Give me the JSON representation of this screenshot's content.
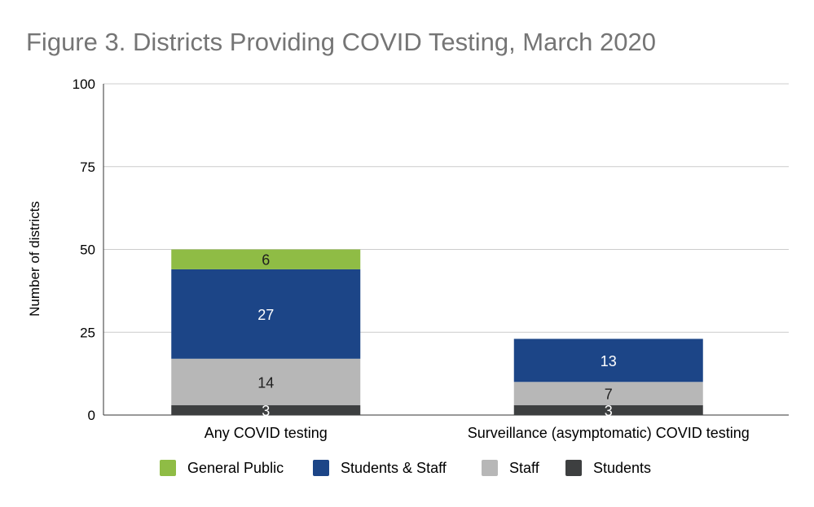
{
  "chart_data": {
    "type": "bar",
    "stacked": true,
    "title": "Figure 3. Districts Providing COVID Testing, March 2020",
    "xlabel": "",
    "ylabel": "Number of districts",
    "ylim": [
      0,
      100
    ],
    "yticks": [
      0,
      25,
      50,
      75,
      100
    ],
    "grid": true,
    "legend_position": "bottom",
    "categories": [
      "Any COVID testing",
      "Surveillance (asymptomatic) COVID testing"
    ],
    "series": [
      {
        "name": "Students",
        "color": "#3d3f40",
        "label_color": "#ffffff",
        "values": [
          3,
          3
        ]
      },
      {
        "name": "Staff",
        "color": "#b7b7b7",
        "label_color": "#1f1f1f",
        "values": [
          14,
          7
        ]
      },
      {
        "name": "Students & Staff",
        "color": "#1c4587",
        "label_color": "#ffffff",
        "values": [
          27,
          13
        ]
      },
      {
        "name": "General Public",
        "color": "#8fbc45",
        "label_color": "#1f1f1f",
        "values": [
          6,
          null
        ]
      }
    ],
    "legend_order": [
      "General Public",
      "Students & Staff",
      "Staff",
      "Students"
    ]
  }
}
